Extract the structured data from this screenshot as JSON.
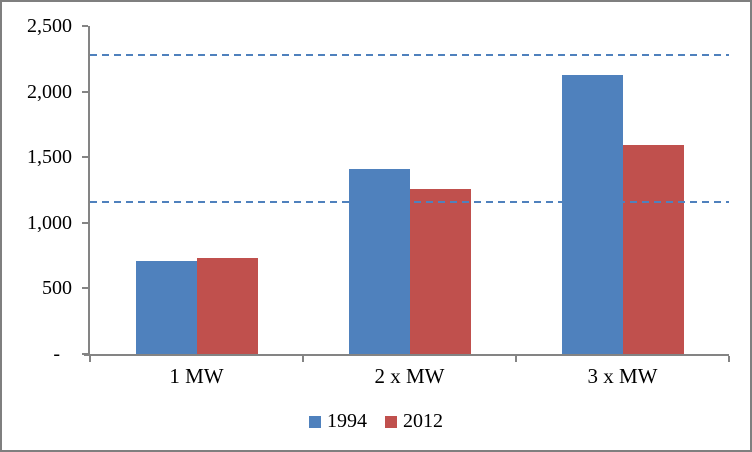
{
  "chart_data": {
    "type": "bar",
    "title": "",
    "xlabel": "",
    "ylabel": "",
    "categories": [
      "1 MW",
      "2 x MW",
      "3 x MW"
    ],
    "series": [
      {
        "name": "1994",
        "color": "#4f81bd",
        "values": [
          710,
          1410,
          2130
        ]
      },
      {
        "name": "2012",
        "color": "#c0504d",
        "values": [
          730,
          1260,
          1590
        ]
      }
    ],
    "reference_lines": [
      {
        "value": 2280,
        "style": "dashed",
        "color": "#4f81bd"
      },
      {
        "value": 1160,
        "style": "dashed",
        "color": "#4f81bd"
      }
    ],
    "y_axis": {
      "min": 0,
      "max": 2500,
      "tick_interval": 500,
      "tick_labels": [
        "-",
        "500",
        "1,000",
        "1,500",
        "2,000",
        "2,500"
      ]
    },
    "grid": false,
    "legend_position": "bottom",
    "legend": [
      "1994",
      "2012"
    ]
  },
  "colors": {
    "axis": "#848484",
    "border": "#7f7f7f",
    "background": "#ffffff",
    "text": "#000000",
    "series_1994": "#4f81bd",
    "series_2012": "#c0504d",
    "reference_line": "#4f81bd"
  }
}
